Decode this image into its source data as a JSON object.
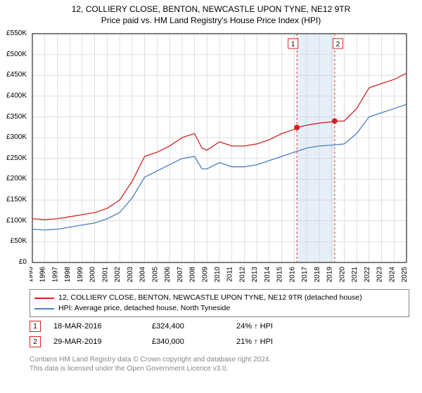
{
  "title_line1": "12, COLLIERY CLOSE, BENTON, NEWCASTLE UPON TYNE, NE12 9TR",
  "title_line2": "Price paid vs. HM Land Registry's House Price Index (HPI)",
  "chart": {
    "type": "line",
    "xlim": [
      1995,
      2025
    ],
    "ylim": [
      0,
      550000
    ],
    "ytick_step": 50000,
    "y_ticks": [
      "£0",
      "£50K",
      "£100K",
      "£150K",
      "£200K",
      "£250K",
      "£300K",
      "£350K",
      "£400K",
      "£450K",
      "£500K",
      "£550K"
    ],
    "x_ticks": [
      1995,
      1996,
      1997,
      1998,
      1999,
      2000,
      2001,
      2002,
      2003,
      2004,
      2005,
      2006,
      2007,
      2008,
      2009,
      2010,
      2011,
      2012,
      2013,
      2014,
      2015,
      2016,
      2017,
      2018,
      2019,
      2020,
      2021,
      2022,
      2023,
      2024,
      2025
    ],
    "grid_color": "#cccccc",
    "axis_color": "#000000",
    "background_color": "#ffffff",
    "highlight_band": {
      "x_start": 2016.2,
      "x_end": 2019.2,
      "fill": "#e6eef7"
    },
    "vline_color": "#d22",
    "vlines": [
      2016.21,
      2019.24
    ],
    "series": [
      {
        "name": "price_paid",
        "color": "#d22222",
        "line_width": 1.3,
        "label": "12, COLLIERY CLOSE, BENTON, NEWCASTLE UPON TYNE, NE12 9TR (detached house)",
        "data": [
          [
            1995,
            105000
          ],
          [
            1996,
            103000
          ],
          [
            1997,
            105000
          ],
          [
            1998,
            110000
          ],
          [
            1999,
            115000
          ],
          [
            2000,
            120000
          ],
          [
            2001,
            130000
          ],
          [
            2002,
            150000
          ],
          [
            2003,
            195000
          ],
          [
            2004,
            255000
          ],
          [
            2005,
            265000
          ],
          [
            2006,
            280000
          ],
          [
            2007,
            300000
          ],
          [
            2008,
            310000
          ],
          [
            2008.6,
            275000
          ],
          [
            2009,
            270000
          ],
          [
            2010,
            290000
          ],
          [
            2011,
            280000
          ],
          [
            2012,
            280000
          ],
          [
            2013,
            285000
          ],
          [
            2014,
            295000
          ],
          [
            2015,
            310000
          ],
          [
            2016,
            320000
          ],
          [
            2016.21,
            324400
          ],
          [
            2017,
            330000
          ],
          [
            2018,
            335000
          ],
          [
            2019,
            338000
          ],
          [
            2019.24,
            340000
          ],
          [
            2020,
            340000
          ],
          [
            2021,
            370000
          ],
          [
            2022,
            420000
          ],
          [
            2023,
            430000
          ],
          [
            2024,
            440000
          ],
          [
            2025,
            455000
          ]
        ]
      },
      {
        "name": "hpi",
        "color": "#4a7fc1",
        "line_width": 1.3,
        "label": "HPI: Average price, detached house, North Tyneside",
        "data": [
          [
            1995,
            80000
          ],
          [
            1996,
            78000
          ],
          [
            1997,
            80000
          ],
          [
            1998,
            85000
          ],
          [
            1999,
            90000
          ],
          [
            2000,
            95000
          ],
          [
            2001,
            105000
          ],
          [
            2002,
            120000
          ],
          [
            2003,
            155000
          ],
          [
            2004,
            205000
          ],
          [
            2005,
            220000
          ],
          [
            2006,
            235000
          ],
          [
            2007,
            250000
          ],
          [
            2008,
            255000
          ],
          [
            2008.6,
            225000
          ],
          [
            2009,
            225000
          ],
          [
            2010,
            240000
          ],
          [
            2011,
            230000
          ],
          [
            2012,
            230000
          ],
          [
            2013,
            235000
          ],
          [
            2014,
            245000
          ],
          [
            2015,
            255000
          ],
          [
            2016,
            265000
          ],
          [
            2017,
            275000
          ],
          [
            2018,
            280000
          ],
          [
            2019,
            282000
          ],
          [
            2020,
            285000
          ],
          [
            2021,
            310000
          ],
          [
            2022,
            350000
          ],
          [
            2023,
            360000
          ],
          [
            2024,
            370000
          ],
          [
            2025,
            380000
          ]
        ]
      }
    ],
    "sale_markers": [
      {
        "n": "1",
        "x": 2016.21,
        "y": 324400,
        "label_x": 2015.9,
        "label_y_offset": -18
      },
      {
        "n": "2",
        "x": 2019.24,
        "y": 340000,
        "label_x": 2019.5,
        "label_y_offset": -18
      }
    ],
    "sale_point_color": "#d22222",
    "sale_point_radius": 4
  },
  "legend": {
    "items": [
      {
        "color": "#d22222",
        "label": "12, COLLIERY CLOSE, BENTON, NEWCASTLE UPON TYNE, NE12 9TR (detached house)"
      },
      {
        "color": "#4a7fc1",
        "label": "HPI: Average price, detached house, North Tyneside"
      }
    ]
  },
  "sales": [
    {
      "n": "1",
      "date": "18-MAR-2016",
      "price": "£324,400",
      "delta": "24% ↑ HPI",
      "border_color": "#d22222"
    },
    {
      "n": "2",
      "date": "29-MAR-2019",
      "price": "£340,000",
      "delta": "21% ↑ HPI",
      "border_color": "#d22222"
    }
  ],
  "footer_line1": "Contains HM Land Registry data © Crown copyright and database right 2024.",
  "footer_line2": "This data is licensed under the Open Government Licence v3.0."
}
